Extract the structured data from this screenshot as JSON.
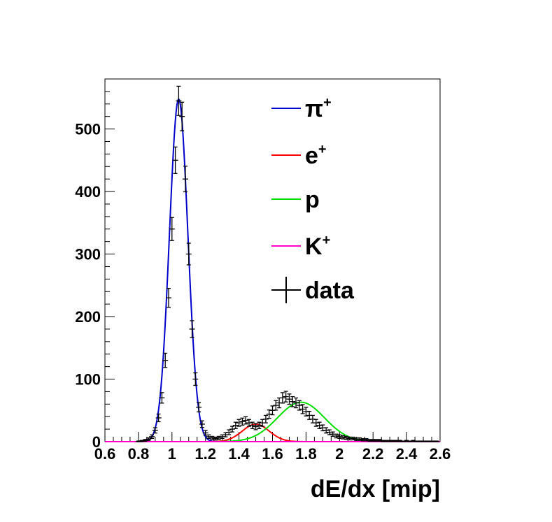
{
  "chart_data": {
    "type": "line",
    "title": "",
    "xlabel": "dE/dx [mip]",
    "ylabel": "",
    "xlim": [
      0.6,
      2.6
    ],
    "ylim": [
      0,
      580
    ],
    "x_ticks": [
      "0.6",
      "0.8",
      "1",
      "1.2",
      "1.4",
      "1.6",
      "1.8",
      "2",
      "2.2",
      "2.4",
      "2.6"
    ],
    "y_ticks": [
      "0",
      "100",
      "200",
      "300",
      "400",
      "500"
    ],
    "grid": false,
    "legend_placement": "top-right",
    "legend": [
      {
        "base": "π",
        "sup": "+",
        "color": "#0000cc",
        "marker": "line"
      },
      {
        "base": "e",
        "sup": "+",
        "color": "#ff0000",
        "marker": "line"
      },
      {
        "base": "p",
        "sup": "",
        "color": "#00dd00",
        "marker": "line"
      },
      {
        "base": "K",
        "sup": "+",
        "color": "#ff00cc",
        "marker": "line"
      },
      {
        "base": "data",
        "sup": "",
        "color": "#000000",
        "marker": "cross"
      }
    ],
    "series": [
      {
        "name": "π+",
        "color": "#0000cc",
        "shape": "gaussian",
        "amplitude": 548,
        "mean": 1.04,
        "sigma": 0.055
      },
      {
        "name": "e+",
        "color": "#ff0000",
        "shape": "gaussian",
        "amplitude": 28,
        "mean": 1.5,
        "sigma": 0.08
      },
      {
        "name": "p",
        "color": "#00dd00",
        "shape": "gaussian",
        "amplitude": 63,
        "mean": 1.77,
        "sigma": 0.14
      },
      {
        "name": "K+",
        "color": "#ff00cc",
        "shape": "flat",
        "value": 0
      }
    ],
    "data_points": {
      "name": "data",
      "color": "#000000",
      "x": [
        0.8,
        0.82,
        0.84,
        0.86,
        0.88,
        0.9,
        0.92,
        0.94,
        0.96,
        0.98,
        1.0,
        1.02,
        1.04,
        1.06,
        1.08,
        1.1,
        1.12,
        1.14,
        1.16,
        1.18,
        1.2,
        1.22,
        1.24,
        1.26,
        1.28,
        1.3,
        1.32,
        1.34,
        1.36,
        1.38,
        1.4,
        1.42,
        1.44,
        1.46,
        1.48,
        1.5,
        1.52,
        1.54,
        1.56,
        1.58,
        1.6,
        1.62,
        1.64,
        1.66,
        1.68,
        1.7,
        1.72,
        1.74,
        1.76,
        1.78,
        1.8,
        1.82,
        1.84,
        1.86,
        1.88,
        1.9,
        1.92,
        1.94,
        1.96,
        1.98,
        2.0,
        2.02,
        2.04,
        2.06,
        2.08,
        2.1,
        2.12,
        2.14,
        2.16,
        2.18,
        2.2,
        2.22,
        2.24,
        2.26,
        2.28,
        2.3,
        2.32,
        2.34,
        2.36,
        2.38,
        2.4,
        2.42,
        2.44,
        2.46,
        2.48,
        2.5,
        2.52,
        2.54,
        2.56,
        2.58
      ],
      "y": [
        0,
        1,
        2,
        4,
        8,
        18,
        38,
        70,
        130,
        230,
        340,
        450,
        545,
        520,
        420,
        300,
        180,
        100,
        55,
        28,
        14,
        8,
        6,
        5,
        6,
        8,
        11,
        15,
        20,
        26,
        30,
        32,
        34,
        30,
        26,
        24,
        26,
        30,
        36,
        44,
        50,
        58,
        62,
        70,
        72,
        68,
        64,
        62,
        58,
        52,
        48,
        42,
        36,
        30,
        26,
        22,
        18,
        15,
        12,
        9,
        8,
        7,
        6,
        5,
        5,
        4,
        4,
        3,
        3,
        2,
        2,
        2,
        2,
        1,
        1,
        1,
        1,
        1,
        1,
        0,
        1,
        0,
        1,
        0,
        0,
        0,
        0,
        0,
        0,
        0
      ]
    }
  }
}
